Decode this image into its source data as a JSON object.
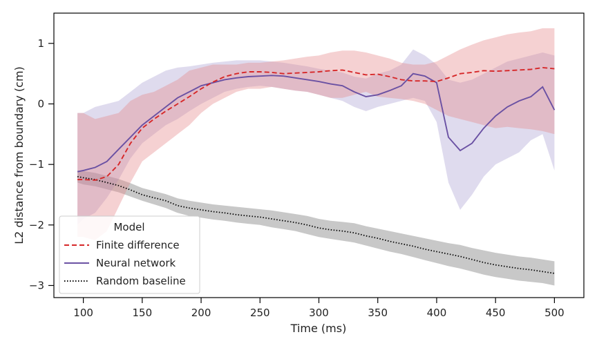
{
  "chart_data": {
    "type": "line",
    "title": "",
    "xlabel": "Time (ms)",
    "ylabel": "L2 distance from boundary (cm)",
    "xlim": [
      75,
      525
    ],
    "ylim": [
      -3.2,
      1.5
    ],
    "xticks": [
      100,
      150,
      200,
      250,
      300,
      350,
      400,
      450,
      500
    ],
    "yticks": [
      1,
      0,
      -1,
      -2,
      -3
    ],
    "ytick_labels": [
      "1",
      "0",
      "−1",
      "−2",
      "−3"
    ],
    "grid": false,
    "legend": {
      "title": "Model",
      "placement": "lower-left"
    },
    "x": [
      95,
      100,
      110,
      120,
      130,
      140,
      150,
      160,
      170,
      180,
      190,
      200,
      210,
      220,
      230,
      240,
      250,
      260,
      270,
      280,
      290,
      300,
      310,
      320,
      330,
      340,
      350,
      360,
      370,
      380,
      390,
      400,
      410,
      420,
      430,
      440,
      450,
      460,
      470,
      480,
      490,
      500
    ],
    "series": [
      {
        "name": "Finite difference",
        "color": "#d62728",
        "style": "dashed",
        "values": [
          -1.25,
          -1.25,
          -1.26,
          -1.2,
          -1.0,
          -0.65,
          -0.4,
          -0.25,
          -0.12,
          0.0,
          0.12,
          0.25,
          0.36,
          0.45,
          0.5,
          0.53,
          0.53,
          0.52,
          0.5,
          0.51,
          0.52,
          0.53,
          0.55,
          0.56,
          0.52,
          0.48,
          0.49,
          0.45,
          0.4,
          0.38,
          0.38,
          0.37,
          0.43,
          0.5,
          0.52,
          0.55,
          0.54,
          0.55,
          0.56,
          0.57,
          0.6,
          0.58
        ],
        "lower": [
          -2.2,
          -2.2,
          -2.25,
          -2.1,
          -1.7,
          -1.3,
          -0.95,
          -0.8,
          -0.65,
          -0.5,
          -0.35,
          -0.15,
          0.0,
          0.1,
          0.2,
          0.25,
          0.25,
          0.28,
          0.25,
          0.22,
          0.2,
          0.15,
          0.1,
          0.1,
          0.15,
          0.2,
          0.12,
          0.1,
          0.08,
          0.05,
          0.0,
          -0.1,
          -0.2,
          -0.25,
          -0.3,
          -0.35,
          -0.4,
          -0.38,
          -0.4,
          -0.42,
          -0.45,
          -0.5
        ],
        "upper": [
          -0.15,
          -0.15,
          -0.25,
          -0.2,
          -0.15,
          0.05,
          0.15,
          0.2,
          0.3,
          0.4,
          0.55,
          0.6,
          0.65,
          0.65,
          0.65,
          0.68,
          0.68,
          0.7,
          0.72,
          0.75,
          0.78,
          0.8,
          0.85,
          0.88,
          0.88,
          0.85,
          0.8,
          0.75,
          0.68,
          0.65,
          0.65,
          0.7,
          0.8,
          0.9,
          0.98,
          1.05,
          1.1,
          1.15,
          1.18,
          1.2,
          1.25,
          1.25
        ]
      },
      {
        "name": "Neural network",
        "color": "#6a51a3",
        "style": "solid",
        "values": [
          -1.12,
          -1.1,
          -1.05,
          -0.95,
          -0.75,
          -0.55,
          -0.35,
          -0.2,
          -0.05,
          0.1,
          0.2,
          0.3,
          0.35,
          0.4,
          0.43,
          0.45,
          0.46,
          0.47,
          0.46,
          0.43,
          0.4,
          0.37,
          0.33,
          0.3,
          0.2,
          0.12,
          0.15,
          0.22,
          0.3,
          0.5,
          0.46,
          0.35,
          -0.55,
          -0.77,
          -0.65,
          -0.4,
          -0.2,
          -0.05,
          0.05,
          0.12,
          0.28,
          -0.1
        ],
        "lower": [
          -2.0,
          -1.9,
          -1.8,
          -1.55,
          -1.25,
          -0.9,
          -0.65,
          -0.5,
          -0.35,
          -0.25,
          -0.12,
          0.0,
          0.1,
          0.2,
          0.25,
          0.28,
          0.3,
          0.28,
          0.25,
          0.22,
          0.2,
          0.15,
          0.1,
          0.05,
          -0.05,
          -0.12,
          -0.05,
          0.0,
          0.05,
          0.1,
          0.05,
          -0.3,
          -1.3,
          -1.75,
          -1.5,
          -1.2,
          -1.0,
          -0.9,
          -0.8,
          -0.6,
          -0.5,
          -1.1
        ],
        "upper": [
          -0.15,
          -0.15,
          -0.05,
          0.0,
          0.05,
          0.2,
          0.35,
          0.45,
          0.55,
          0.6,
          0.62,
          0.65,
          0.68,
          0.7,
          0.72,
          0.72,
          0.72,
          0.7,
          0.68,
          0.65,
          0.62,
          0.58,
          0.55,
          0.52,
          0.45,
          0.42,
          0.5,
          0.55,
          0.65,
          0.9,
          0.8,
          0.65,
          0.4,
          0.35,
          0.4,
          0.5,
          0.6,
          0.7,
          0.75,
          0.8,
          0.85,
          0.8
        ]
      },
      {
        "name": "Random baseline",
        "color": "#000000",
        "style": "dotted",
        "values": [
          -1.2,
          -1.22,
          -1.25,
          -1.3,
          -1.35,
          -1.42,
          -1.5,
          -1.55,
          -1.6,
          -1.68,
          -1.72,
          -1.75,
          -1.78,
          -1.8,
          -1.83,
          -1.85,
          -1.87,
          -1.9,
          -1.93,
          -1.96,
          -2.0,
          -2.05,
          -2.08,
          -2.1,
          -2.13,
          -2.18,
          -2.22,
          -2.27,
          -2.31,
          -2.35,
          -2.4,
          -2.44,
          -2.48,
          -2.52,
          -2.57,
          -2.62,
          -2.66,
          -2.69,
          -2.72,
          -2.74,
          -2.77,
          -2.8
        ],
        "lower": [
          -1.3,
          -1.33,
          -1.36,
          -1.41,
          -1.46,
          -1.53,
          -1.6,
          -1.66,
          -1.72,
          -1.8,
          -1.85,
          -1.88,
          -1.91,
          -1.93,
          -1.96,
          -1.98,
          -2.0,
          -2.04,
          -2.07,
          -2.1,
          -2.15,
          -2.2,
          -2.23,
          -2.26,
          -2.29,
          -2.34,
          -2.39,
          -2.44,
          -2.48,
          -2.53,
          -2.58,
          -2.63,
          -2.68,
          -2.72,
          -2.77,
          -2.82,
          -2.86,
          -2.89,
          -2.92,
          -2.94,
          -2.96,
          -3.0
        ],
        "upper": [
          -1.1,
          -1.11,
          -1.14,
          -1.19,
          -1.24,
          -1.31,
          -1.39,
          -1.44,
          -1.49,
          -1.56,
          -1.6,
          -1.63,
          -1.66,
          -1.68,
          -1.7,
          -1.72,
          -1.74,
          -1.76,
          -1.79,
          -1.82,
          -1.85,
          -1.9,
          -1.93,
          -1.95,
          -1.97,
          -2.02,
          -2.06,
          -2.1,
          -2.14,
          -2.18,
          -2.22,
          -2.26,
          -2.3,
          -2.33,
          -2.38,
          -2.42,
          -2.46,
          -2.49,
          -2.52,
          -2.54,
          -2.57,
          -2.6
        ]
      }
    ]
  }
}
